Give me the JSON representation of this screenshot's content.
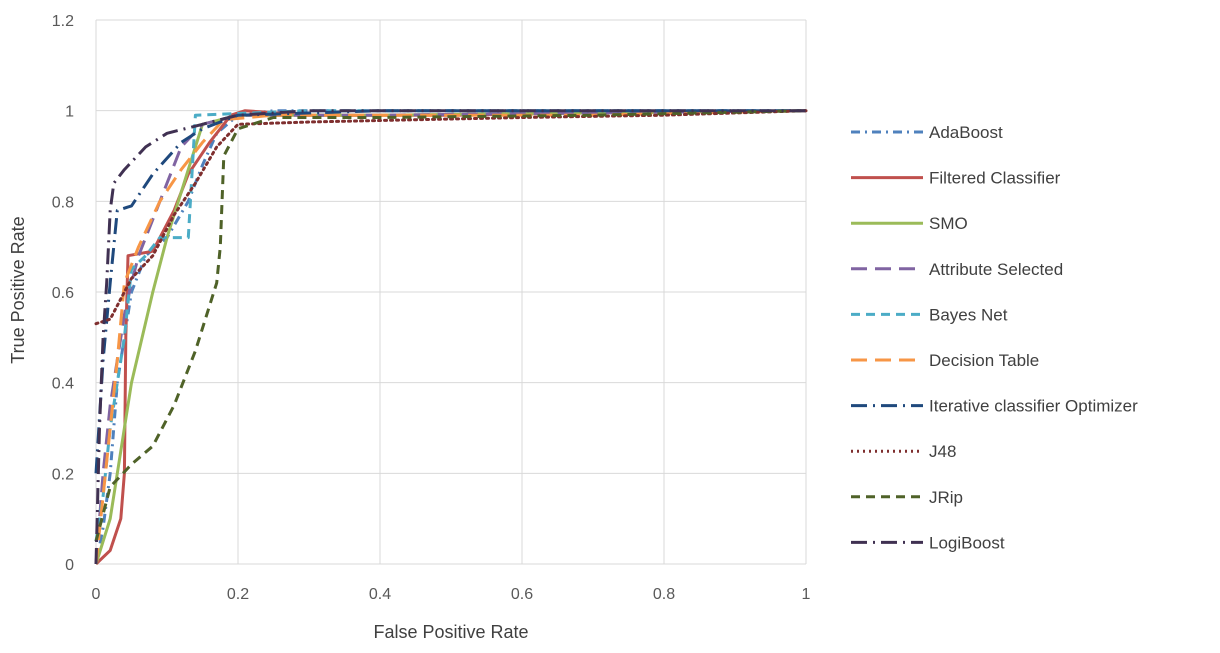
{
  "chart_data": {
    "type": "line",
    "title": "",
    "xlabel": "False Positive Rate",
    "ylabel": "True Positive Rate",
    "xlim": [
      0,
      1
    ],
    "ylim": [
      0,
      1.2
    ],
    "x_ticks": [
      0,
      0.2,
      0.4,
      0.6,
      0.8,
      1
    ],
    "y_ticks": [
      0,
      0.2,
      0.4,
      0.6,
      0.8,
      1,
      1.2
    ],
    "x_tick_labels": [
      "0",
      "0.2",
      "0.4",
      "0.6",
      "0.8",
      "1"
    ],
    "y_tick_labels": [
      "0",
      "0.2",
      "0.4",
      "0.6",
      "0.8",
      "1",
      "1.2"
    ],
    "grid": true,
    "legend_position": "right",
    "series": [
      {
        "name": "AdaBoost",
        "color": "#4F81BD",
        "dash": "dashdot",
        "points": [
          [
            0,
            0
          ],
          [
            0.01,
            0.08
          ],
          [
            0.02,
            0.2
          ],
          [
            0.03,
            0.4
          ],
          [
            0.04,
            0.5
          ],
          [
            0.05,
            0.6
          ],
          [
            0.07,
            0.68
          ],
          [
            0.1,
            0.72
          ],
          [
            0.13,
            0.8
          ],
          [
            0.15,
            0.88
          ],
          [
            0.17,
            0.95
          ],
          [
            0.2,
            0.99
          ],
          [
            0.25,
            1
          ],
          [
            0.4,
            1
          ],
          [
            0.6,
            1
          ],
          [
            0.8,
            1
          ],
          [
            1,
            1
          ]
        ]
      },
      {
        "name": "Filtered Classifier",
        "color": "#C0504D",
        "dash": "solid",
        "points": [
          [
            0,
            0
          ],
          [
            0.02,
            0.03
          ],
          [
            0.035,
            0.1
          ],
          [
            0.04,
            0.2
          ],
          [
            0.042,
            0.5
          ],
          [
            0.045,
            0.68
          ],
          [
            0.08,
            0.69
          ],
          [
            0.11,
            0.78
          ],
          [
            0.13,
            0.86
          ],
          [
            0.16,
            0.93
          ],
          [
            0.19,
            0.99
          ],
          [
            0.21,
            1
          ],
          [
            0.3,
            0.99
          ],
          [
            0.5,
            0.99
          ],
          [
            0.7,
            0.995
          ],
          [
            1,
            1
          ]
        ]
      },
      {
        "name": "SMO",
        "color": "#9BBB59",
        "dash": "solid",
        "points": [
          [
            0,
            0
          ],
          [
            0.02,
            0.1
          ],
          [
            0.05,
            0.4
          ],
          [
            0.08,
            0.6
          ],
          [
            0.1,
            0.72
          ],
          [
            0.13,
            0.87
          ],
          [
            0.15,
            0.97
          ],
          [
            0.2,
            0.99
          ],
          [
            0.4,
            0.99
          ],
          [
            0.7,
            0.995
          ],
          [
            1,
            1
          ]
        ]
      },
      {
        "name": "Attribute Selected",
        "color": "#8064A2",
        "dash": "longdash",
        "points": [
          [
            0,
            0
          ],
          [
            0.01,
            0.2
          ],
          [
            0.02,
            0.35
          ],
          [
            0.03,
            0.45
          ],
          [
            0.04,
            0.55
          ],
          [
            0.05,
            0.62
          ],
          [
            0.06,
            0.68
          ],
          [
            0.08,
            0.76
          ],
          [
            0.1,
            0.84
          ],
          [
            0.12,
            0.92
          ],
          [
            0.15,
            0.97
          ],
          [
            0.2,
            0.99
          ],
          [
            0.4,
            0.99
          ],
          [
            0.7,
            0.995
          ],
          [
            1,
            1
          ]
        ]
      },
      {
        "name": "Bayes Net",
        "color": "#4BACC6",
        "dash": "dash",
        "points": [
          [
            0,
            0.05
          ],
          [
            0.01,
            0.15
          ],
          [
            0.02,
            0.3
          ],
          [
            0.04,
            0.5
          ],
          [
            0.05,
            0.65
          ],
          [
            0.07,
            0.68
          ],
          [
            0.09,
            0.72
          ],
          [
            0.13,
            0.72
          ],
          [
            0.14,
            0.99
          ],
          [
            0.3,
            1
          ],
          [
            0.6,
            1
          ],
          [
            1,
            1
          ]
        ]
      },
      {
        "name": "Decision Table",
        "color": "#F79646",
        "dash": "longdash",
        "points": [
          [
            0,
            0
          ],
          [
            0.01,
            0.15
          ],
          [
            0.02,
            0.3
          ],
          [
            0.03,
            0.45
          ],
          [
            0.04,
            0.62
          ],
          [
            0.06,
            0.7
          ],
          [
            0.09,
            0.8
          ],
          [
            0.12,
            0.87
          ],
          [
            0.15,
            0.93
          ],
          [
            0.18,
            0.98
          ],
          [
            0.25,
            0.99
          ],
          [
            0.4,
            0.99
          ],
          [
            0.7,
            0.99
          ],
          [
            1,
            1
          ]
        ]
      },
      {
        "name": "Iterative classifier Optimizer",
        "color": "#1F497D",
        "dash": "longdashdot",
        "points": [
          [
            0,
            0.2
          ],
          [
            0.01,
            0.45
          ],
          [
            0.02,
            0.62
          ],
          [
            0.03,
            0.78
          ],
          [
            0.05,
            0.79
          ],
          [
            0.08,
            0.86
          ],
          [
            0.12,
            0.93
          ],
          [
            0.15,
            0.96
          ],
          [
            0.2,
            0.99
          ],
          [
            0.4,
            1
          ],
          [
            0.7,
            1
          ],
          [
            1,
            1
          ]
        ]
      },
      {
        "name": "J48",
        "color": "#7F2F2F",
        "dash": "dot",
        "points": [
          [
            0,
            0.53
          ],
          [
            0.02,
            0.54
          ],
          [
            0.05,
            0.63
          ],
          [
            0.08,
            0.68
          ],
          [
            0.11,
            0.77
          ],
          [
            0.14,
            0.84
          ],
          [
            0.17,
            0.92
          ],
          [
            0.2,
            0.97
          ],
          [
            0.3,
            0.975
          ],
          [
            0.6,
            0.985
          ],
          [
            0.8,
            0.99
          ],
          [
            1,
            1
          ]
        ]
      },
      {
        "name": "JRip",
        "color": "#4F6228",
        "dash": "dash",
        "points": [
          [
            0,
            0.05
          ],
          [
            0.02,
            0.17
          ],
          [
            0.05,
            0.22
          ],
          [
            0.08,
            0.26
          ],
          [
            0.11,
            0.35
          ],
          [
            0.14,
            0.47
          ],
          [
            0.17,
            0.62
          ],
          [
            0.175,
            0.7
          ],
          [
            0.18,
            0.9
          ],
          [
            0.2,
            0.96
          ],
          [
            0.25,
            0.985
          ],
          [
            0.4,
            0.985
          ],
          [
            0.7,
            0.99
          ],
          [
            1,
            1
          ]
        ]
      },
      {
        "name": "LogiBoost",
        "color": "#403152",
        "dash": "longdashdot",
        "points": [
          [
            0,
            0
          ],
          [
            0.005,
            0.3
          ],
          [
            0.01,
            0.5
          ],
          [
            0.015,
            0.62
          ],
          [
            0.02,
            0.78
          ],
          [
            0.025,
            0.84
          ],
          [
            0.04,
            0.87
          ],
          [
            0.07,
            0.92
          ],
          [
            0.1,
            0.95
          ],
          [
            0.15,
            0.97
          ],
          [
            0.2,
            0.99
          ],
          [
            0.3,
            1
          ],
          [
            0.6,
            1
          ],
          [
            1,
            1
          ]
        ]
      }
    ]
  }
}
